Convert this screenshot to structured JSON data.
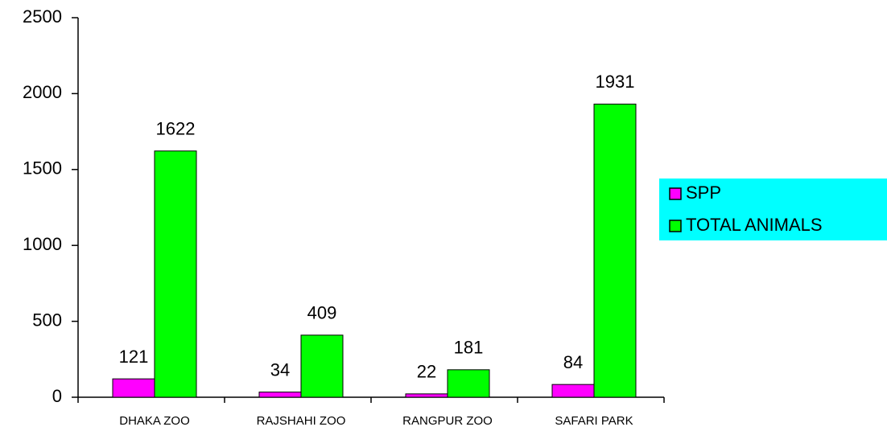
{
  "chart_data": {
    "type": "bar",
    "categories": [
      "DHAKA ZOO",
      "RAJSHAHI ZOO",
      "RANGPUR ZOO",
      "SAFARI PARK"
    ],
    "series": [
      {
        "name": "SPP",
        "color": "#ff00ff",
        "values": [
          121,
          34,
          22,
          84
        ]
      },
      {
        "name": "TOTAL ANIMALS",
        "color": "#00ff00",
        "values": [
          1622,
          409,
          181,
          1931
        ]
      }
    ],
    "ylim": [
      0,
      2500
    ],
    "yticks": [
      0,
      500,
      1000,
      1500,
      2000,
      2500
    ],
    "legend": "right",
    "legend_background": "#00ffff"
  }
}
